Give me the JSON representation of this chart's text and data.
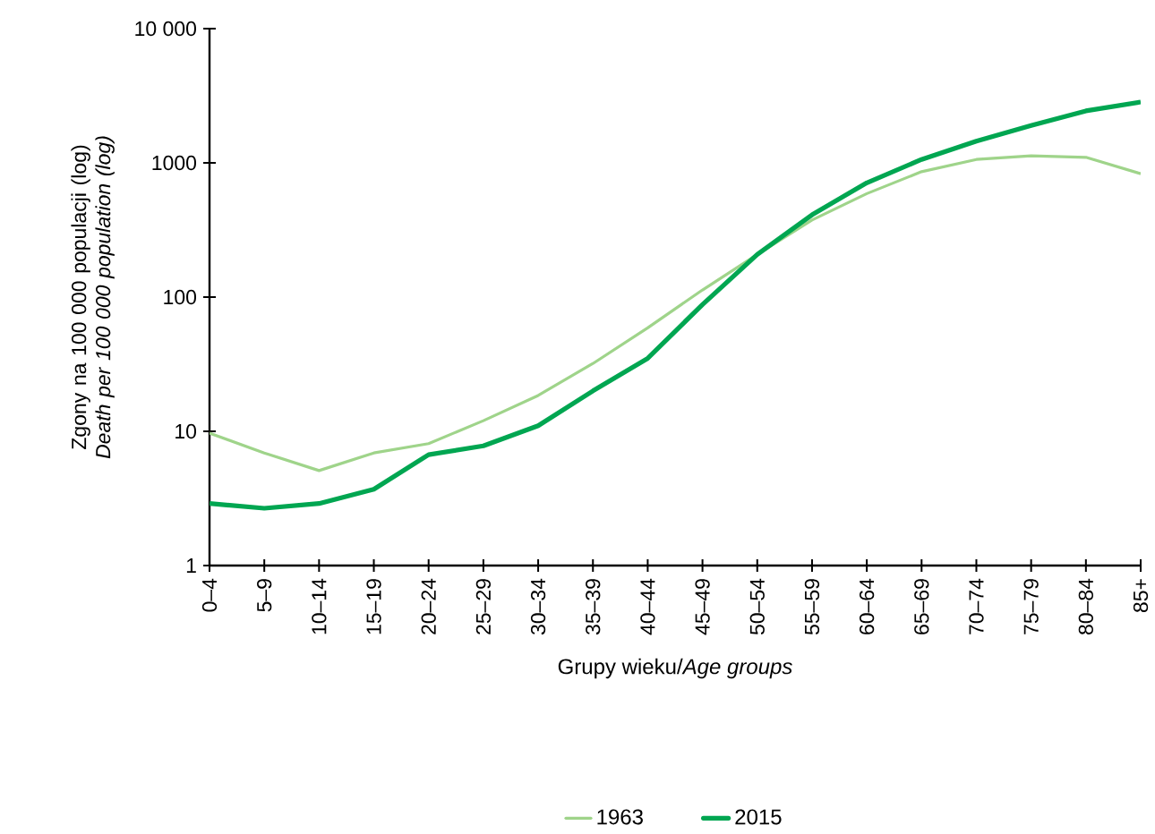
{
  "chart_data": {
    "type": "line",
    "xlabel": "Grupy wieku/*Age groups*",
    "ylabel": "Zgony na 100 000 populacji (log) *Death per 100 000 population (log)*",
    "categories": [
      "0–4",
      "5–9",
      "10–14",
      "15–19",
      "20–24",
      "25–29",
      "30–34",
      "35–39",
      "40–44",
      "45–49",
      "50–54",
      "55–59",
      "60–64",
      "65–69",
      "70–74",
      "75–79",
      "80–84",
      "85+"
    ],
    "series": [
      {
        "name": "1963",
        "color": "#9fd48a",
        "values": [
          9.7,
          6.9,
          5.1,
          6.9,
          8.1,
          12,
          18.5,
          32,
          59,
          113,
          208,
          375,
          590,
          860,
          1060,
          1130,
          1100,
          830
        ]
      },
      {
        "name": "2015",
        "color": "#00a651",
        "values": [
          2.9,
          2.67,
          2.9,
          3.7,
          6.7,
          7.8,
          11,
          20,
          35,
          88,
          208,
          410,
          710,
          1060,
          1450,
          1900,
          2440,
          2840
        ]
      }
    ],
    "log": true,
    "ylim": [
      1,
      10000
    ],
    "yticks": [
      1,
      10,
      100,
      1000,
      {
        "value": 10000,
        "label": "10 000"
      }
    ],
    "legend": "bottom"
  }
}
